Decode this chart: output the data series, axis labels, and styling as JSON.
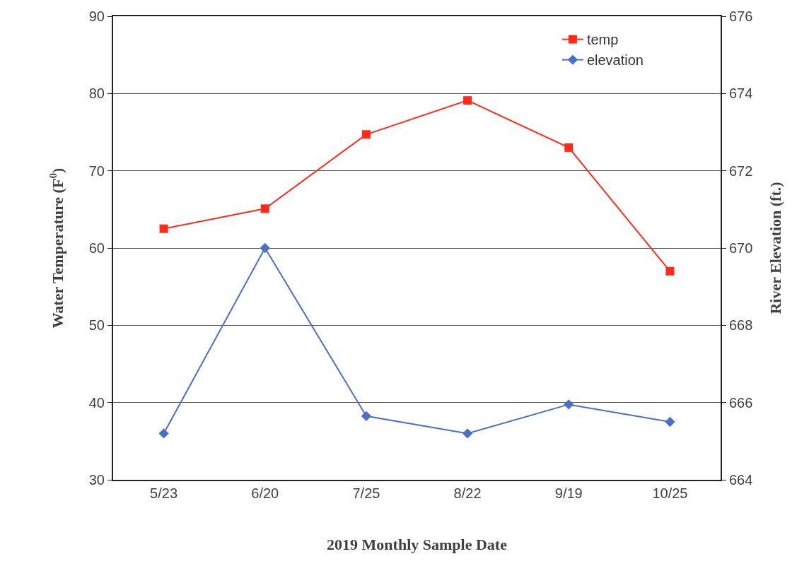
{
  "chart_data": {
    "type": "line",
    "xlabel": "2019 Monthly Sample Date",
    "ylabel": "Water Temperature (F$^{0}$)",
    "y2label": "River Elevation (ft.)",
    "categories": [
      "5/23",
      "6/20",
      "7/25",
      "8/22",
      "9/19",
      "10/25"
    ],
    "series": [
      {
        "name": "temp",
        "color": "#ff2a1a",
        "marker": "square",
        "values": [
          62.5,
          65.1,
          74.7,
          79.1,
          73,
          57
        ]
      },
      {
        "name": "elevation",
        "color": "#4a6fc8",
        "marker": "diamond",
        "axis": "y2",
        "values": [
          665.2,
          670,
          665.65,
          665.2,
          665.95,
          665.5
        ]
      }
    ],
    "ylim": [
      30,
      90
    ],
    "yticks": [
      30,
      40,
      50,
      60,
      70,
      80,
      90
    ],
    "y2lim": [
      664,
      676
    ],
    "y2ticks": [
      664,
      666,
      668,
      670,
      672,
      674,
      676
    ],
    "grid": "y",
    "legend": "top right",
    "line_style": "solid"
  }
}
